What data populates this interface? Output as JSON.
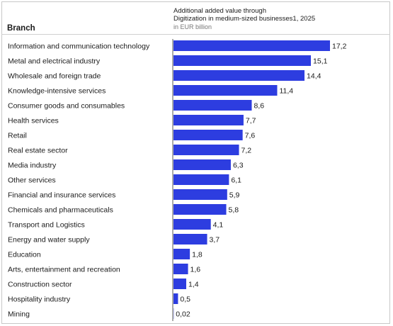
{
  "header": {
    "branch_label": "Branch",
    "title_line1": "Additional added value through",
    "title_line2": "Digitization in medium-sized businesses1, 2025",
    "unit": "in EUR billion"
  },
  "colors": {
    "bar": "#2d3de0",
    "axis": "#555555"
  },
  "chart_data": {
    "type": "bar",
    "orientation": "horizontal",
    "title": "Additional added value through Digitization in medium-sized businesses1, 2025",
    "xlabel": "in EUR billion",
    "ylabel": "Branch",
    "xlim": [
      0,
      17.2
    ],
    "grid": false,
    "categories": [
      "Information and communication technology",
      "Metal and electrical industry",
      "Wholesale and foreign trade",
      "Knowledge-intensive services",
      "Consumer goods and consumables",
      "Health services",
      "Retail",
      "Real estate sector",
      "Media industry",
      "Other services",
      "Financial and insurance services",
      "Chemicals and pharmaceuticals",
      "Transport and Logistics",
      "Energy and water supply",
      "Education",
      "Arts, entertainment and recreation",
      "Construction sector",
      "Hospitality industry",
      "Mining"
    ],
    "values": [
      17.2,
      15.1,
      14.4,
      11.4,
      8.6,
      7.7,
      7.6,
      7.2,
      6.3,
      6.1,
      5.9,
      5.8,
      4.1,
      3.7,
      1.8,
      1.6,
      1.4,
      0.5,
      0.02
    ],
    "value_labels": [
      "17,2",
      "15,1",
      "14,4",
      "11,4",
      "8,6",
      "7,7",
      "7,6",
      "7,2",
      "6,3",
      "6,1",
      "5,9",
      "5,8",
      "4,1",
      "3,7",
      "1,8",
      "1,6",
      "1,4",
      "0,5",
      "0,02"
    ]
  }
}
